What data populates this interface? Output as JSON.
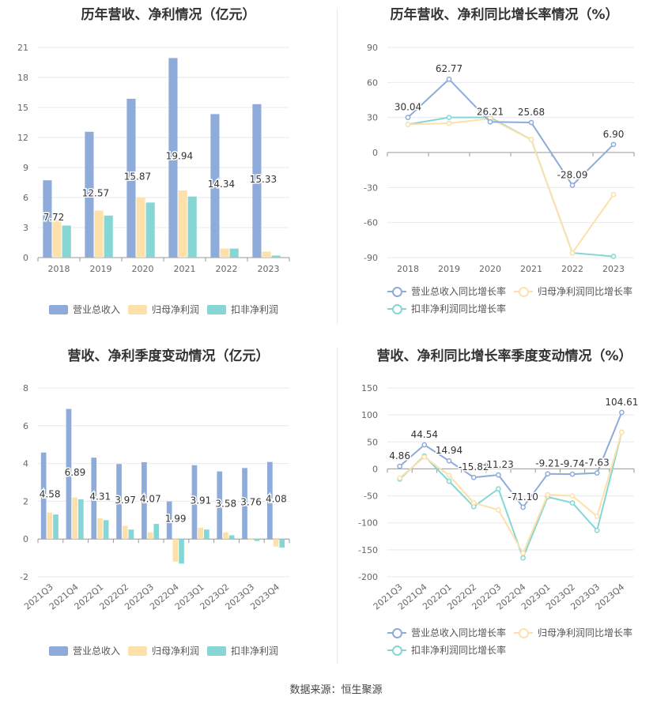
{
  "source": "数据来源：恒生聚源",
  "colors": {
    "revenue": "#8eabd9",
    "parent_profit": "#fde0aa",
    "deducted_profit": "#86d6d6",
    "grid": "#e8e8ef",
    "axis": "#999999"
  },
  "legend": {
    "revenue": "营业总收入",
    "parent_profit": "归母净利润",
    "deducted_profit": "扣非净利润",
    "revenue_growth": "营业总收入同比增长率",
    "parent_growth": "归母净利润同比增长率",
    "deducted_growth": "扣非净利润同比增长率"
  },
  "chart_data": [
    {
      "type": "bar",
      "title": "历年营收、净利情况（亿元）",
      "categories": [
        "2018",
        "2019",
        "2020",
        "2021",
        "2022",
        "2023"
      ],
      "ylim": [
        0,
        21
      ],
      "yticks": [
        0,
        3,
        6,
        9,
        12,
        15,
        18,
        21
      ],
      "series": [
        {
          "name": "营业总收入",
          "values": [
            7.72,
            12.57,
            15.87,
            19.94,
            14.34,
            15.33
          ],
          "labels": [
            "7.72",
            "12.57",
            "15.87",
            "19.94",
            "14.34",
            "15.33"
          ]
        },
        {
          "name": "归母净利润",
          "values": [
            3.7,
            4.7,
            6.0,
            6.7,
            0.9,
            0.6
          ]
        },
        {
          "name": "扣非净利润",
          "values": [
            3.2,
            4.2,
            5.5,
            6.1,
            0.9,
            0.2
          ]
        }
      ],
      "grid": true,
      "legend": "bottom"
    },
    {
      "type": "line",
      "title": "历年营收、净利同比增长率情况（%）",
      "categories": [
        "2018",
        "2019",
        "2020",
        "2021",
        "2022",
        "2023"
      ],
      "ylim": [
        -90,
        90
      ],
      "yticks": [
        -90,
        -60,
        -30,
        0,
        30,
        60,
        90
      ],
      "series": [
        {
          "name": "营业总收入同比增长率",
          "values": [
            30.04,
            62.77,
            26.21,
            25.68,
            -28.09,
            6.9
          ],
          "labels": [
            "30.04",
            "62.77",
            "26.21",
            "25.68",
            "-28.09",
            "6.90"
          ]
        },
        {
          "name": "归母净利润同比增长率",
          "values": [
            24,
            25,
            29,
            11,
            -86,
            -36
          ]
        },
        {
          "name": "扣非净利润同比增长率",
          "values": [
            24,
            30,
            30,
            11,
            -86,
            -89
          ]
        }
      ],
      "grid": true,
      "legend": "bottom"
    },
    {
      "type": "bar",
      "title": "营收、净利季度变动情况（亿元）",
      "categories": [
        "2021Q3",
        "2021Q4",
        "2022Q1",
        "2022Q2",
        "2022Q3",
        "2022Q4",
        "2023Q1",
        "2023Q2",
        "2023Q3",
        "2023Q4"
      ],
      "ylim": [
        -2,
        8
      ],
      "yticks": [
        -2,
        0,
        2,
        4,
        6,
        8
      ],
      "series": [
        {
          "name": "营业总收入",
          "values": [
            4.58,
            6.89,
            4.31,
            3.97,
            4.07,
            1.99,
            3.91,
            3.58,
            3.76,
            4.08
          ],
          "labels": [
            "4.58",
            "6.89",
            "4.31",
            "3.97",
            "4.07",
            "1.99",
            "3.91",
            "3.58",
            "3.76",
            "4.08"
          ]
        },
        {
          "name": "归母净利润",
          "values": [
            1.4,
            2.2,
            1.1,
            0.7,
            0.35,
            -1.2,
            0.6,
            0.35,
            -0.05,
            -0.4
          ]
        },
        {
          "name": "扣非净利润",
          "values": [
            1.3,
            2.1,
            1.0,
            0.5,
            0.8,
            -1.3,
            0.5,
            0.2,
            -0.1,
            -0.45
          ]
        }
      ],
      "grid": true,
      "legend": "bottom"
    },
    {
      "type": "line",
      "title": "营收、净利同比增长率季度变动情况（%）",
      "categories": [
        "2021Q3",
        "2021Q4",
        "2022Q1",
        "2022Q2",
        "2022Q3",
        "2022Q4",
        "2023Q1",
        "2023Q2",
        "2023Q3",
        "2023Q4"
      ],
      "ylim": [
        -200,
        150
      ],
      "yticks": [
        -200,
        -150,
        -100,
        -50,
        0,
        50,
        100,
        150
      ],
      "series": [
        {
          "name": "营业总收入同比增长率",
          "values": [
            4.86,
            44.54,
            14.94,
            -15.82,
            -11.23,
            -71.1,
            -9.21,
            -9.74,
            -7.63,
            104.61
          ],
          "labels": [
            "4.86",
            "44.54",
            "14.94",
            "-15.82",
            "-11.23",
            "-71.10",
            "-9.21",
            "-9.74",
            "-7.63",
            "104.61"
          ]
        },
        {
          "name": "归母净利润同比增长率",
          "values": [
            -17,
            22,
            -12,
            -63,
            -76,
            -156,
            -48,
            -50,
            -88,
            68
          ]
        },
        {
          "name": "扣非净利润同比增长率",
          "values": [
            -19,
            24,
            -23,
            -70,
            -37,
            -165,
            -52,
            -63,
            -114,
            68
          ]
        }
      ],
      "grid": true,
      "legend": "bottom"
    }
  ]
}
